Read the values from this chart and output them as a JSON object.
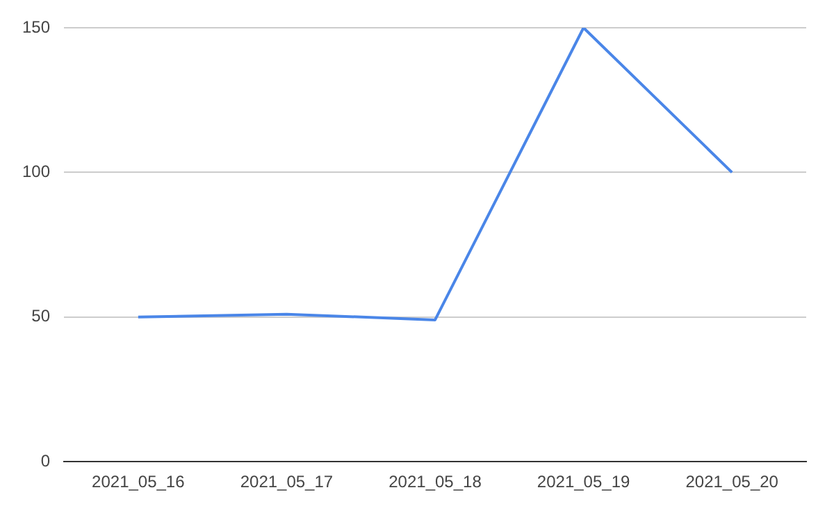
{
  "chart_data": {
    "type": "line",
    "categories": [
      "2021_05_16",
      "2021_05_17",
      "2021_05_18",
      "2021_05_19",
      "2021_05_20"
    ],
    "series": [
      {
        "color": "#4a86e8",
        "values": [
          50,
          51,
          49,
          150,
          100
        ]
      }
    ],
    "ylim": [
      0,
      150
    ],
    "yticks": [
      0,
      50,
      100,
      150
    ],
    "grid": "y",
    "legend": false,
    "marker": "none",
    "line_style": "solid"
  }
}
